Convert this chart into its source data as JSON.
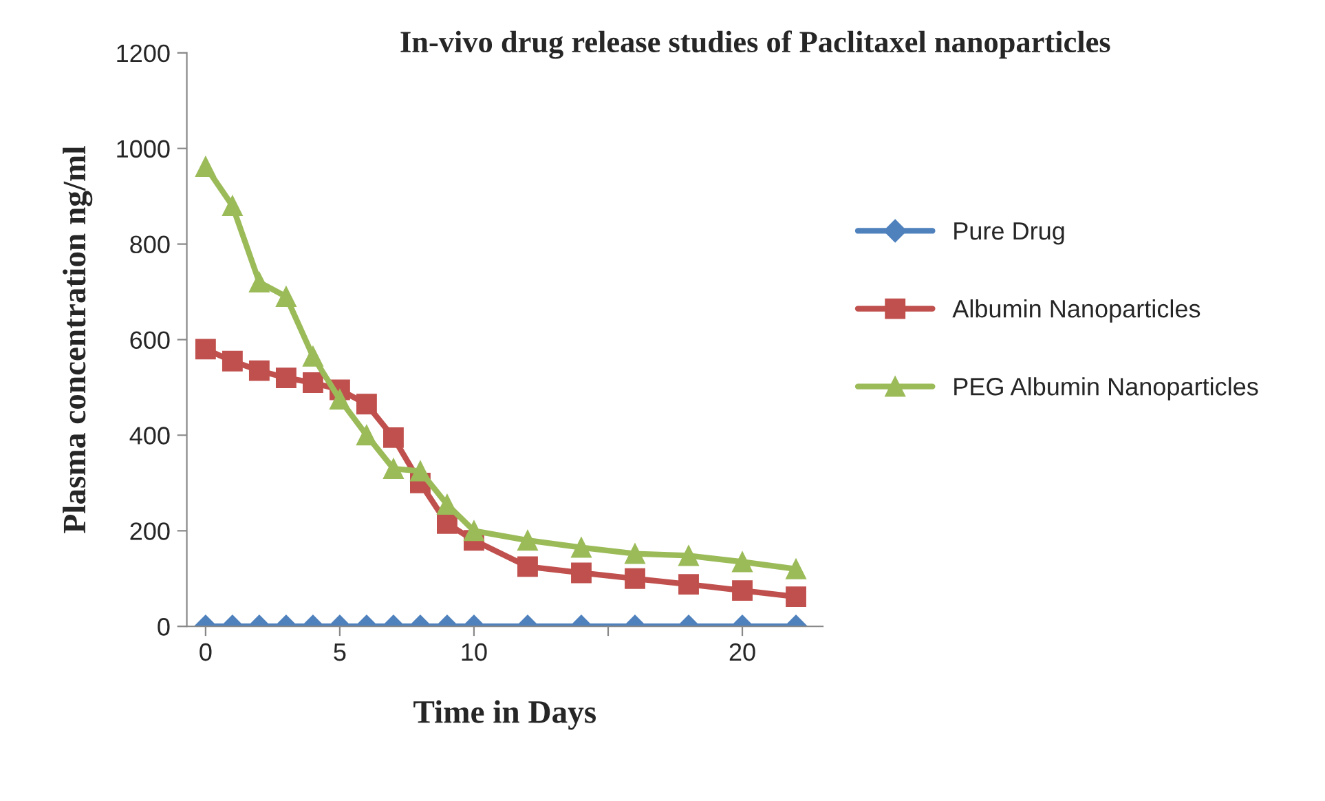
{
  "chart_data": {
    "type": "line",
    "title": "In-vivo drug release studies of Paclitaxel nanoparticles",
    "xlabel": "Time in Days",
    "ylabel": "Plasma concentration ng/ml",
    "x": [
      0,
      1,
      2,
      3,
      4,
      5,
      6,
      7,
      8,
      9,
      10,
      12,
      14,
      16,
      18,
      20,
      22
    ],
    "series": [
      {
        "name": "Pure Drug",
        "color": "#4f81bd",
        "marker": "diamond",
        "values": [
          0,
          0,
          0,
          0,
          0,
          0,
          0,
          0,
          0,
          0,
          0,
          0,
          0,
          0,
          0,
          0,
          0
        ]
      },
      {
        "name": "Albumin Nanoparticles",
        "color": "#c0504d",
        "marker": "square",
        "values": [
          580,
          555,
          535,
          520,
          510,
          495,
          465,
          395,
          300,
          215,
          180,
          125,
          112,
          100,
          88,
          75,
          62
        ]
      },
      {
        "name": "PEG Albumin Nanoparticles",
        "color": "#9bbb59",
        "marker": "triangle",
        "values": [
          962,
          880,
          720,
          690,
          565,
          475,
          400,
          330,
          325,
          255,
          200,
          180,
          165,
          152,
          148,
          135,
          120
        ]
      }
    ],
    "xlim": [
      -0.7,
      23
    ],
    "xticks": [
      0,
      5,
      10,
      {
        "value": 15,
        "label": null
      },
      20
    ],
    "ylim": [
      0,
      1200
    ],
    "yticks": [
      0,
      200,
      400,
      600,
      800,
      1000,
      1200
    ],
    "grid": false,
    "legend": "right",
    "line_style": "solid"
  }
}
